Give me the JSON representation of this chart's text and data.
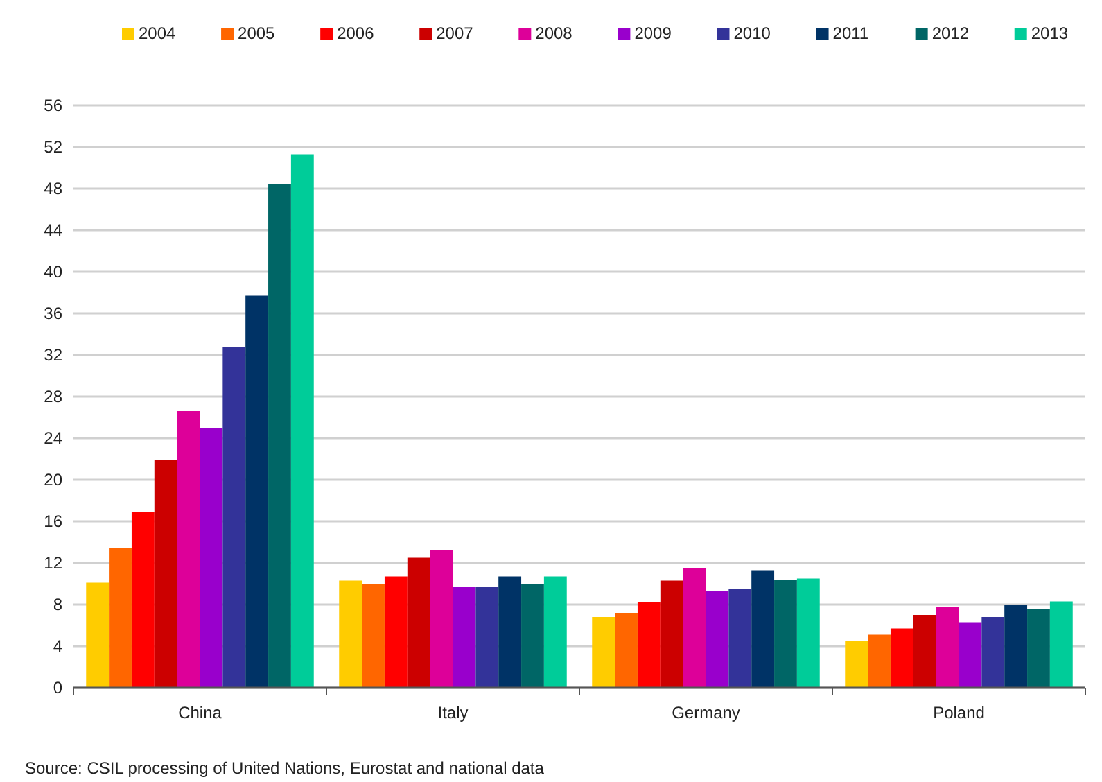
{
  "chart_data": {
    "type": "bar",
    "categories": [
      "China",
      "Italy",
      "Germany",
      "Poland"
    ],
    "series": [
      {
        "name": "2004",
        "color": "#ffcc00",
        "values": [
          10.1,
          10.3,
          6.8,
          4.5
        ]
      },
      {
        "name": "2005",
        "color": "#ff6600",
        "values": [
          13.4,
          10.0,
          7.2,
          5.1
        ]
      },
      {
        "name": "2006",
        "color": "#ff0000",
        "values": [
          16.9,
          10.7,
          8.2,
          5.7
        ]
      },
      {
        "name": "2007",
        "color": "#cc0000",
        "values": [
          21.9,
          12.5,
          10.3,
          7.0
        ]
      },
      {
        "name": "2008",
        "color": "#dd0099",
        "values": [
          26.6,
          13.2,
          11.5,
          7.8
        ]
      },
      {
        "name": "2009",
        "color": "#9900cc",
        "values": [
          25.0,
          9.7,
          9.3,
          6.3
        ]
      },
      {
        "name": "2010",
        "color": "#333399",
        "values": [
          32.8,
          9.7,
          9.5,
          6.8
        ]
      },
      {
        "name": "2011",
        "color": "#003366",
        "values": [
          37.7,
          10.7,
          11.3,
          8.0
        ]
      },
      {
        "name": "2012",
        "color": "#006666",
        "values": [
          48.4,
          10.0,
          10.4,
          7.6
        ]
      },
      {
        "name": "2013",
        "color": "#00cc99",
        "values": [
          51.3,
          10.7,
          10.5,
          8.3
        ]
      }
    ],
    "ylim": [
      0,
      56
    ],
    "yticks": [
      0,
      4,
      8,
      12,
      16,
      20,
      24,
      28,
      32,
      36,
      40,
      44,
      48,
      52,
      56
    ],
    "grid": "y",
    "legend": "top",
    "annotations": [
      "Source: CSIL processing of United Nations, Eurostat and national data"
    ]
  }
}
